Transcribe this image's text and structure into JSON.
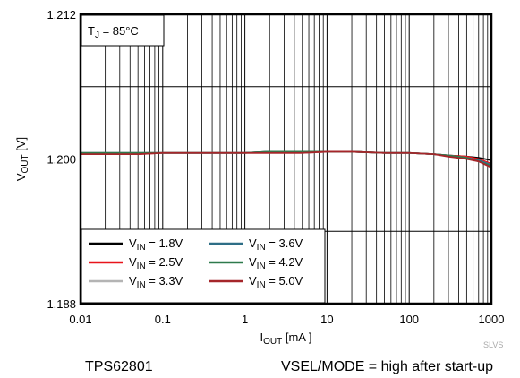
{
  "chart_data": {
    "type": "line",
    "title": "",
    "xlabel": "I",
    "xlabel_sub": "OUT",
    "xlabel_unit": " [mA ]",
    "ylabel": "V",
    "ylabel_sub": "OUT",
    "ylabel_unit": " [V]",
    "x_scale": "log",
    "xlim": [
      0.01,
      1000
    ],
    "ylim": [
      1.188,
      1.212
    ],
    "x_ticks": [
      "0.01",
      "0.1",
      "1",
      "10",
      "100",
      "1000"
    ],
    "y_ticks": [
      "1.212",
      "1.200",
      "1.188"
    ],
    "grid": true,
    "annotation": {
      "prefix": "T",
      "sub": "J",
      "suffix": " = 85°C"
    },
    "legend_position": "bottom-left",
    "series": [
      {
        "name": "1.8V",
        "color": "#000000",
        "x": [
          0.01,
          0.02,
          0.05,
          0.1,
          0.2,
          0.5,
          1,
          2,
          5,
          10,
          20,
          50,
          100,
          200,
          300,
          500,
          700,
          1000
        ],
        "y": [
          1.2005,
          1.2005,
          1.2005,
          1.2005,
          1.2005,
          1.2005,
          1.2005,
          1.2006,
          1.2006,
          1.2006,
          1.2006,
          1.2005,
          1.2005,
          1.2004,
          1.2003,
          1.2002,
          1.2001,
          1.1999
        ]
      },
      {
        "name": "2.5V",
        "color": "#e8141b",
        "x": [
          0.01,
          0.02,
          0.05,
          0.1,
          0.2,
          0.5,
          1,
          2,
          5,
          10,
          20,
          50,
          100,
          200,
          300,
          500,
          700,
          1000
        ],
        "y": [
          1.2004,
          1.2004,
          1.2004,
          1.2005,
          1.2005,
          1.2005,
          1.2005,
          1.2005,
          1.2005,
          1.2006,
          1.2006,
          1.2005,
          1.2005,
          1.2004,
          1.2003,
          1.2002,
          1.2,
          1.1996
        ]
      },
      {
        "name": "3.3V",
        "color": "#b4b4b4",
        "x": [
          0.01,
          0.02,
          0.05,
          0.1,
          0.2,
          0.5,
          1,
          2,
          5,
          10,
          20,
          50,
          100,
          200,
          300,
          500,
          700,
          1000
        ],
        "y": [
          1.2005,
          1.2005,
          1.2005,
          1.2005,
          1.2005,
          1.2005,
          1.2005,
          1.2005,
          1.2005,
          1.2006,
          1.2006,
          1.2005,
          1.2005,
          1.2004,
          1.2003,
          1.2001,
          1.1999,
          1.1995
        ]
      },
      {
        "name": "3.6V",
        "color": "#2e6e86",
        "x": [
          0.01,
          0.02,
          0.05,
          0.1,
          0.2,
          0.5,
          1,
          2,
          5,
          10,
          20,
          50,
          100,
          200,
          300,
          500,
          700,
          1000
        ],
        "y": [
          1.2005,
          1.2005,
          1.2005,
          1.2005,
          1.2005,
          1.2005,
          1.2005,
          1.2006,
          1.2006,
          1.2006,
          1.2006,
          1.2005,
          1.2005,
          1.2004,
          1.2003,
          1.2001,
          1.1999,
          1.1995
        ]
      },
      {
        "name": "4.2V",
        "color": "#2e7a4c",
        "x": [
          0.01,
          0.02,
          0.05,
          0.1,
          0.2,
          0.5,
          1,
          2,
          5,
          10,
          20,
          50,
          100,
          200,
          300,
          500,
          700,
          1000
        ],
        "y": [
          1.2005,
          1.2005,
          1.2005,
          1.2005,
          1.2005,
          1.2005,
          1.2005,
          1.2006,
          1.2006,
          1.2006,
          1.2006,
          1.2005,
          1.2005,
          1.2004,
          1.2003,
          1.2001,
          1.1998,
          1.1994
        ]
      },
      {
        "name": "5.0V",
        "color": "#a5262a",
        "x": [
          0.01,
          0.02,
          0.05,
          0.1,
          0.2,
          0.5,
          1,
          2,
          5,
          10,
          20,
          50,
          100,
          200,
          300,
          500,
          700,
          1000
        ],
        "y": [
          1.2004,
          1.2004,
          1.2004,
          1.2005,
          1.2005,
          1.2005,
          1.2005,
          1.2005,
          1.2005,
          1.2006,
          1.2006,
          1.2005,
          1.2005,
          1.2004,
          1.2002,
          1.2,
          1.1998,
          1.1993
        ]
      }
    ],
    "legend_prefix": "V",
    "legend_sub": "IN",
    "legend_sep": " = "
  },
  "footer": {
    "left": "TPS62801",
    "right": "VSEL/MODE = high after start-up",
    "code": "SLVS"
  }
}
